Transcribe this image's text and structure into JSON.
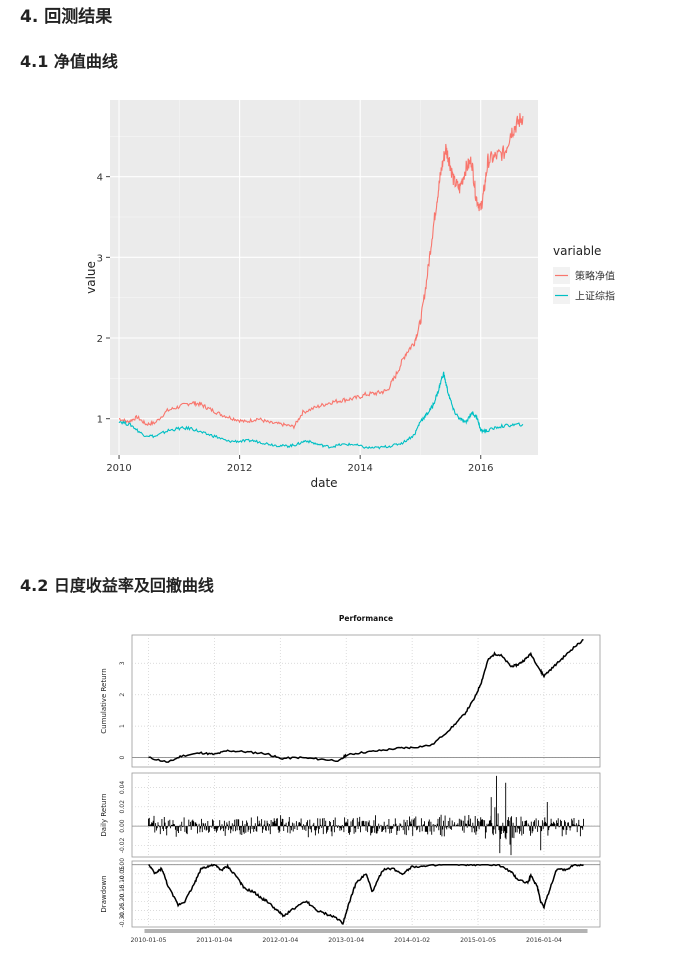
{
  "headings": {
    "section": "4. 回测结果",
    "sub1": "4.1 净值曲线",
    "sub2": "4.2 日度收益率及回撤曲线"
  },
  "chart_data": [
    {
      "type": "line",
      "xlabel": "date",
      "ylabel": "value",
      "x_ticks": [
        "2010",
        "2012",
        "2014",
        "2016"
      ],
      "y_ticks": [
        "1",
        "2",
        "3",
        "4"
      ],
      "xlim": [
        2009.85,
        2016.95
      ],
      "ylim": [
        0.55,
        4.95
      ],
      "grid": true,
      "legend": {
        "title": "variable",
        "position": "right"
      },
      "series": [
        {
          "name": "策略净值",
          "color": "#f8766d",
          "x": [
            2010.0,
            2010.15,
            2010.3,
            2010.45,
            2010.6,
            2010.8,
            2011.0,
            2011.2,
            2011.35,
            2011.5,
            2011.7,
            2011.9,
            2012.1,
            2012.3,
            2012.5,
            2012.7,
            2012.9,
            2013.05,
            2013.3,
            2013.5,
            2013.7,
            2013.9,
            2014.1,
            2014.3,
            2014.45,
            2014.6,
            2014.75,
            2014.9,
            2015.0,
            2015.1,
            2015.2,
            2015.28,
            2015.35,
            2015.42,
            2015.48,
            2015.55,
            2015.65,
            2015.75,
            2015.85,
            2015.92,
            2016.0,
            2016.05,
            2016.12,
            2016.25,
            2016.4,
            2016.5,
            2016.6,
            2016.7
          ],
          "values": [
            1.0,
            0.96,
            1.02,
            0.93,
            0.95,
            1.1,
            1.15,
            1.2,
            1.18,
            1.12,
            1.05,
            1.0,
            0.96,
            1.0,
            0.95,
            0.93,
            0.9,
            1.08,
            1.15,
            1.2,
            1.23,
            1.25,
            1.3,
            1.32,
            1.35,
            1.55,
            1.8,
            1.95,
            2.2,
            2.7,
            3.3,
            3.75,
            4.1,
            4.35,
            4.2,
            3.95,
            3.85,
            4.1,
            4.2,
            3.75,
            3.6,
            3.8,
            4.2,
            4.25,
            4.3,
            4.55,
            4.65,
            4.75
          ]
        },
        {
          "name": "上证综指",
          "color": "#00bfc4",
          "x": [
            2010.0,
            2010.2,
            2010.4,
            2010.6,
            2010.8,
            2011.0,
            2011.2,
            2011.4,
            2011.6,
            2011.8,
            2012.0,
            2012.2,
            2012.4,
            2012.6,
            2012.8,
            2012.95,
            2013.1,
            2013.3,
            2013.5,
            2013.7,
            2013.9,
            2014.1,
            2014.3,
            2014.5,
            2014.7,
            2014.9,
            2015.0,
            2015.1,
            2015.2,
            2015.3,
            2015.38,
            2015.45,
            2015.55,
            2015.65,
            2015.75,
            2015.85,
            2015.95,
            2016.0,
            2016.1,
            2016.3,
            2016.5,
            2016.7
          ],
          "values": [
            0.97,
            0.92,
            0.8,
            0.78,
            0.85,
            0.88,
            0.88,
            0.82,
            0.78,
            0.72,
            0.72,
            0.73,
            0.7,
            0.67,
            0.66,
            0.68,
            0.73,
            0.68,
            0.65,
            0.68,
            0.68,
            0.64,
            0.64,
            0.66,
            0.7,
            0.8,
            0.97,
            1.05,
            1.15,
            1.35,
            1.57,
            1.35,
            1.1,
            1.0,
            0.95,
            1.08,
            1.0,
            0.85,
            0.85,
            0.9,
            0.92,
            0.93
          ]
        }
      ]
    },
    {
      "type": "line",
      "title": "Performance",
      "x_ticks": [
        "2010-01-05",
        "2011-01-04",
        "2012-01-04",
        "2013-01-04",
        "2014-01-02",
        "2015-01-05",
        "2016-01-04"
      ],
      "panels": [
        {
          "name": "Cumulative Return",
          "ylabel": "Cumulative Return",
          "y_ticks": [
            "0",
            "1",
            "2",
            "3"
          ],
          "ylim": [
            -0.3,
            3.9
          ],
          "x": [
            0.0,
            0.3,
            0.5,
            0.8,
            1.0,
            1.2,
            1.5,
            1.8,
            2.0,
            2.3,
            2.6,
            2.9,
            3.0,
            3.2,
            3.5,
            3.8,
            4.0,
            4.3,
            4.6,
            4.8,
            4.95,
            5.05,
            5.15,
            5.25,
            5.35,
            5.5,
            5.6,
            5.7,
            5.8,
            5.95,
            6.0,
            6.15,
            6.3,
            6.45,
            6.6
          ],
          "values": [
            0.0,
            -0.15,
            0.05,
            0.15,
            0.1,
            0.22,
            0.18,
            0.12,
            -0.03,
            0.0,
            -0.05,
            -0.1,
            0.08,
            0.15,
            0.22,
            0.3,
            0.32,
            0.4,
            0.95,
            1.4,
            1.9,
            2.4,
            3.1,
            3.3,
            3.25,
            2.9,
            2.95,
            3.1,
            3.3,
            2.75,
            2.6,
            2.9,
            3.2,
            3.5,
            3.75
          ]
        },
        {
          "name": "Daily Return",
          "ylabel": "Daily Return",
          "y_ticks": [
            "-0.02",
            "0.00",
            "0.02",
            "0.04"
          ],
          "ylim": [
            -0.032,
            0.055
          ],
          "typical_abs": 0.012,
          "spikes": [
            {
              "x": 5.28,
              "value": 0.052
            },
            {
              "x": 5.33,
              "value": -0.028
            },
            {
              "x": 5.42,
              "value": 0.045
            },
            {
              "x": 5.5,
              "value": -0.03
            },
            {
              "x": 5.2,
              "value": 0.03
            },
            {
              "x": 5.95,
              "value": -0.025
            },
            {
              "x": 6.05,
              "value": 0.025
            }
          ]
        },
        {
          "name": "Drawdown",
          "ylabel": "Drawdown",
          "y_ticks": [
            "-0.30",
            "-0.25",
            "-0.20",
            "-0.15",
            "-0.10",
            "-0.05",
            "0.00"
          ],
          "ylim": [
            -0.34,
            0.02
          ],
          "x": [
            0.0,
            0.1,
            0.2,
            0.3,
            0.45,
            0.55,
            0.7,
            0.8,
            0.9,
            1.0,
            1.1,
            1.2,
            1.35,
            1.45,
            1.6,
            1.7,
            1.8,
            1.95,
            2.05,
            2.2,
            2.4,
            2.55,
            2.7,
            2.85,
            2.95,
            3.05,
            3.15,
            3.3,
            3.4,
            3.55,
            3.7,
            3.85,
            4.0,
            4.2,
            4.5,
            4.8,
            5.0,
            5.3,
            5.5,
            5.6,
            5.75,
            5.8,
            5.9,
            5.95,
            6.0,
            6.1,
            6.2,
            6.35,
            6.45,
            6.6
          ],
          "values": [
            0.0,
            -0.05,
            -0.02,
            -0.12,
            -0.22,
            -0.2,
            -0.1,
            -0.02,
            -0.01,
            0.0,
            -0.03,
            -0.01,
            -0.07,
            -0.13,
            -0.15,
            -0.18,
            -0.2,
            -0.25,
            -0.28,
            -0.24,
            -0.2,
            -0.25,
            -0.27,
            -0.29,
            -0.32,
            -0.2,
            -0.1,
            -0.05,
            -0.15,
            -0.03,
            -0.02,
            -0.05,
            -0.01,
            -0.01,
            0.0,
            0.0,
            0.0,
            0.0,
            -0.04,
            -0.08,
            -0.1,
            -0.06,
            -0.12,
            -0.2,
            -0.23,
            -0.12,
            -0.02,
            -0.03,
            0.0,
            0.0
          ]
        }
      ]
    }
  ]
}
